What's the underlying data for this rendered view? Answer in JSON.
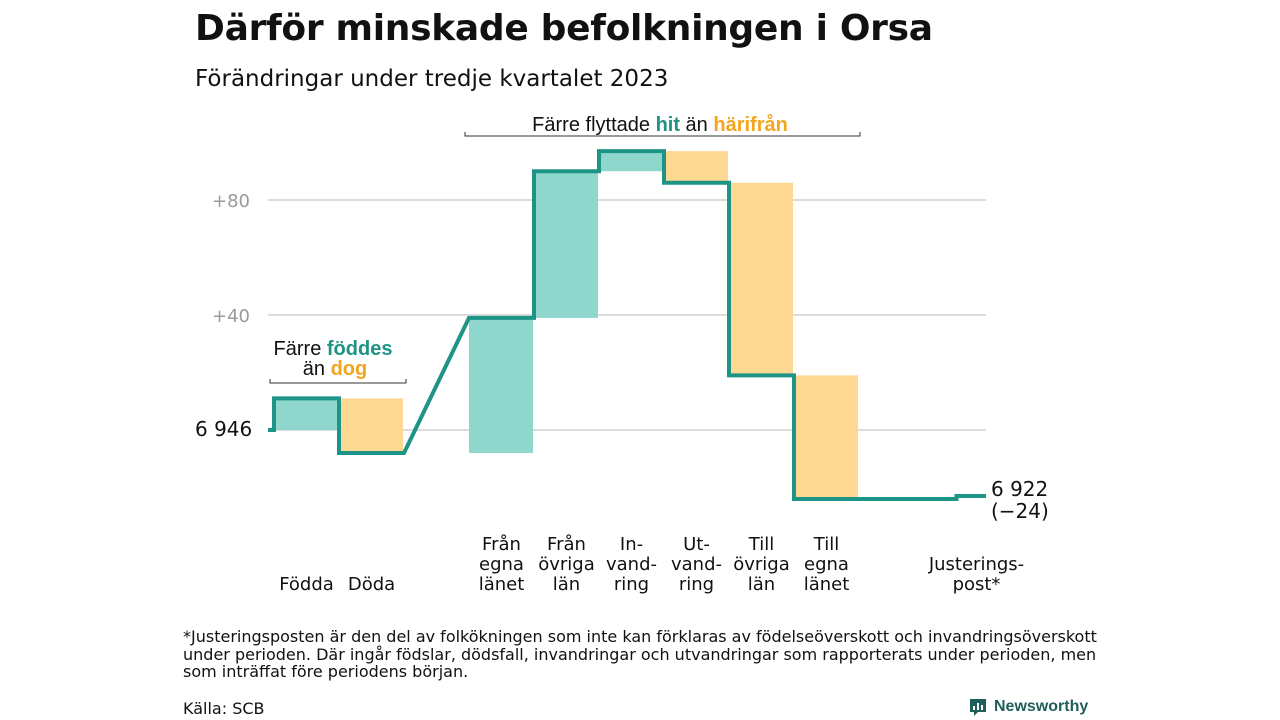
{
  "title": "Därför minskade befolkningen i Orsa",
  "subtitle": "Förändringar under tredje kvartalet 2023",
  "footnote": "*Justeringsposten är den del av folkökningen som inte kan förklaras av födelseöverskott och invandringsöverskott under perioden. Där ingår födslar, dödsfall, invandringar och utvandringar som rapporterats under perioden, men som inträffat före periodens början.",
  "source": "Källa: SCB",
  "brand": "Newsworthy",
  "colors": {
    "increase": "#8fd6cc",
    "decrease": "#fcd892",
    "line": "#1e9486",
    "hit": "#1e9486",
    "harifran": "#f3a51e",
    "grid": "#dcdcdc",
    "tick": "#9a9a9a"
  },
  "chart_data": {
    "type": "waterfall",
    "baseline": 6946,
    "start_label": "6  946",
    "end_label_value": "6 922",
    "end_label_change": "(−24)",
    "y_ticks": [
      {
        "value": 40,
        "label": "+40"
      },
      {
        "value": 80,
        "label": "+80"
      }
    ],
    "ylim": [
      -25,
      100
    ],
    "steps": [
      {
        "lines": [
          "Födda"
        ],
        "change": 11
      },
      {
        "lines": [
          "Döda"
        ],
        "change": -19
      },
      {
        "lines": [
          "Från",
          "egna",
          "länet"
        ],
        "change": 47
      },
      {
        "lines": [
          "Från",
          "övriga",
          "län"
        ],
        "change": 51
      },
      {
        "lines": [
          "In-",
          "vand-",
          "ring"
        ],
        "change": 7
      },
      {
        "lines": [
          "Ut-",
          "vand-",
          "ring"
        ],
        "change": -11
      },
      {
        "lines": [
          "Till",
          "övriga",
          "län"
        ],
        "change": -67
      },
      {
        "lines": [
          "Till",
          "egna",
          "länet"
        ],
        "change": -43
      },
      {
        "lines": [
          "Justerings-",
          "post*"
        ],
        "change": 0
      }
    ],
    "annotations": [
      {
        "lines": [
          [
            "Färre ",
            "föddes"
          ],
          [
            "än ",
            "dog"
          ]
        ]
      },
      {
        "lines": [
          [
            "Färre flyttade ",
            "hit",
            " än ",
            "härifrån"
          ]
        ]
      }
    ]
  }
}
